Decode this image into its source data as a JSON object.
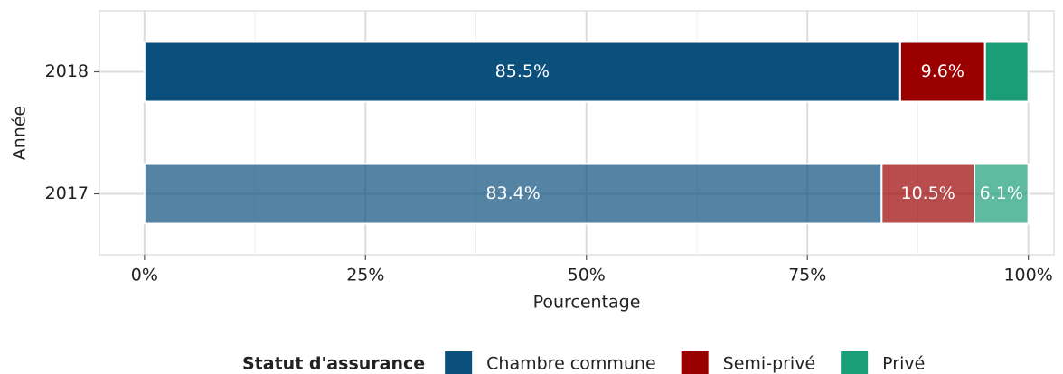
{
  "chart_data": {
    "type": "stacked-bar-horizontal",
    "x_label": "Pourcentage",
    "y_label": "Année",
    "categories": [
      "2018",
      "2017"
    ],
    "alpha": [
      1,
      0.7
    ],
    "series": [
      {
        "name": "Chambre commune",
        "color": "#0b4f7c",
        "values": [
          85.5,
          83.4
        ],
        "value_labels": [
          "85.5%",
          "83.4%"
        ]
      },
      {
        "name": "Semi-privé",
        "color": "#9b0000",
        "values": [
          9.6,
          10.5
        ],
        "value_labels": [
          "9.6%",
          "10.5%"
        ]
      },
      {
        "name": "Privé",
        "color": "#1a9e77",
        "values": [
          4.9,
          6.1
        ],
        "value_labels": [
          null,
          "6.1%"
        ]
      }
    ],
    "xlim": [
      -5.1,
      102.9
    ],
    "xticks": [
      {
        "value": 0,
        "label": "0%"
      },
      {
        "value": 25,
        "label": "25%"
      },
      {
        "value": 50,
        "label": "50%"
      },
      {
        "value": 75,
        "label": "75%"
      },
      {
        "value": 100,
        "label": "100%"
      }
    ],
    "minor_xticks": [
      12.5,
      37.5,
      62.5,
      87.5
    ],
    "grid": true,
    "legend_title": "Statut d'assurance",
    "legend_position": "bottom"
  }
}
